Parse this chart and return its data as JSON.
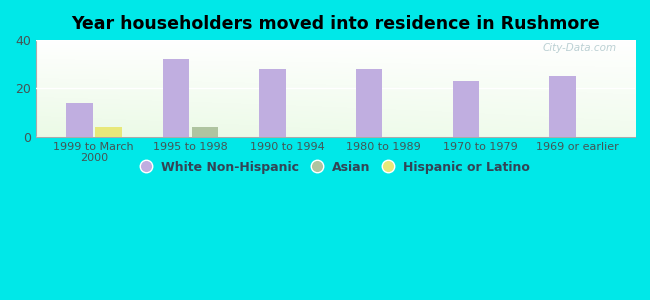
{
  "title": "Year householders moved into residence in Rushmore",
  "categories": [
    "1999 to March\n2000",
    "1995 to 1998",
    "1990 to 1994",
    "1980 to 1989",
    "1970 to 1979",
    "1969 or earlier"
  ],
  "white_non_hispanic": [
    14,
    32,
    28,
    28,
    23,
    25
  ],
  "asian": [
    0,
    4,
    0,
    0,
    0,
    0
  ],
  "hispanic_or_latino": [
    4,
    0,
    0,
    0,
    0,
    0
  ],
  "white_color": "#c0aee0",
  "asian_color": "#afc4a0",
  "hispanic_color": "#e8e87a",
  "bg_color": "#00e8e8",
  "ylim": [
    0,
    40
  ],
  "yticks": [
    0,
    20,
    40
  ],
  "bar_width": 0.25,
  "legend_labels": [
    "White Non-Hispanic",
    "Asian",
    "Hispanic or Latino"
  ],
  "watermark": "City-Data.com"
}
